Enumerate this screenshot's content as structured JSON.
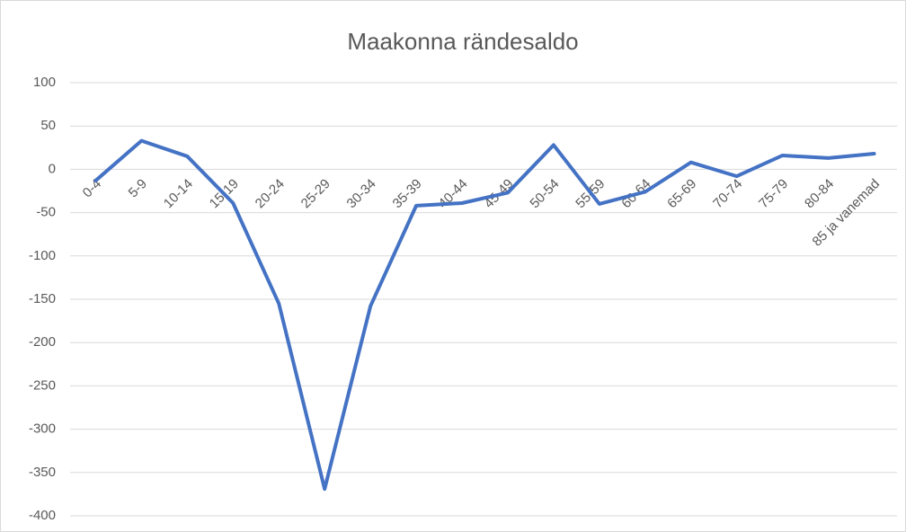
{
  "chart_data": {
    "type": "line",
    "title": "Maakonna rändesaldo",
    "categories": [
      "0-4",
      "5-9",
      "10-14",
      "15-19",
      "20-24",
      "25-29",
      "30-34",
      "35-39",
      "40-44",
      "45-49",
      "50-54",
      "55-59",
      "60-64",
      "65-69",
      "70-74",
      "75-79",
      "80-84",
      "85 ja vanemad"
    ],
    "series": [
      {
        "name": "Rändesaldo",
        "color": "#4472c4",
        "values": [
          -13,
          33,
          15,
          -39,
          -155,
          -369,
          -158,
          -42,
          -39,
          -27,
          28,
          -40,
          -26,
          8,
          -8,
          16,
          13,
          18
        ]
      }
    ],
    "ylim": [
      -400,
      100
    ],
    "yticks": [
      100,
      50,
      0,
      -50,
      -100,
      -150,
      -200,
      -250,
      -300,
      -350,
      -400
    ],
    "grid": true
  }
}
